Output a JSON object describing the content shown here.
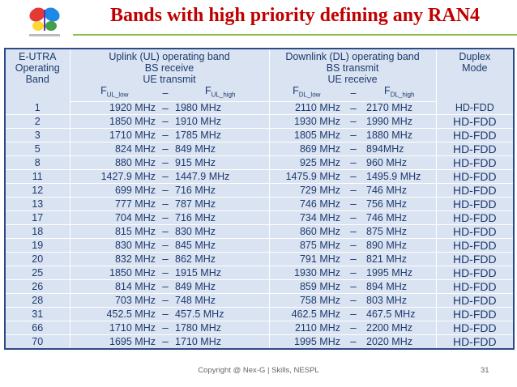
{
  "header": {
    "title": "Bands with high priority defining any RAN4"
  },
  "table": {
    "headers": [
      "E-UTRA Operating Band",
      "Uplink (UL) operating band BS receive UE transmit",
      "Downlink (DL) operating band BS transmit UE receive",
      "Duplex Mode"
    ],
    "header_lines": [
      [
        "E-UTRA",
        "Operating",
        "Band"
      ],
      [
        "Uplink (UL) operating band",
        "BS receive",
        "UE transmit"
      ],
      [
        "Downlink (DL) operating band",
        "BS transmit",
        "UE receive"
      ],
      [
        "Duplex",
        "Mode"
      ]
    ],
    "subheaders": [
      {
        "main": "F",
        "sub": "UL_low"
      },
      "–",
      {
        "main": "F",
        "sub": "UL_high"
      },
      {
        "main": "F",
        "sub": "DL_low"
      },
      "–",
      {
        "main": "F",
        "sub": "DL_high"
      }
    ],
    "rows": [
      [
        "1",
        "1920 MHz",
        "–",
        "1980 MHz",
        "2110 MHz",
        "–",
        "2170 MHz",
        "HD-FDD"
      ],
      [
        "2",
        "1850 MHz",
        "–",
        "1910 MHz",
        "1930 MHz",
        "–",
        "1990 MHz",
        "HD-FDD"
      ],
      [
        "3",
        "1710 MHz",
        "–",
        "1785 MHz",
        "1805 MHz",
        "–",
        "1880 MHz",
        "HD-FDD"
      ],
      [
        "5",
        "824 MHz",
        "–",
        "849 MHz",
        "869 MHz",
        "–",
        "894MHz",
        "HD-FDD"
      ],
      [
        "8",
        "880 MHz",
        "–",
        "915 MHz",
        "925 MHz",
        "–",
        "960 MHz",
        "HD-FDD"
      ],
      [
        "11",
        "1427.9 MHz",
        "–",
        "1447.9 MHz",
        "1475.9 MHz",
        "–",
        "1495.9 MHz",
        "HD-FDD"
      ],
      [
        "12",
        "699 MHz",
        "–",
        "716 MHz",
        "729 MHz",
        "–",
        "746 MHz",
        "HD-FDD"
      ],
      [
        "13",
        "777 MHz",
        "–",
        "787 MHz",
        "746 MHz",
        "–",
        "756 MHz",
        "HD-FDD"
      ],
      [
        "17",
        "704 MHz",
        "–",
        "716 MHz",
        "734 MHz",
        "–",
        "746 MHz",
        "HD-FDD"
      ],
      [
        "18",
        "815 MHz",
        "–",
        "830 MHz",
        "860 MHz",
        "–",
        "875 MHz",
        "HD-FDD"
      ],
      [
        "19",
        "830 MHz",
        "–",
        "845 MHz",
        "875 MHz",
        "–",
        "890 MHz",
        "HD-FDD"
      ],
      [
        "20",
        "832 MHz",
        "–",
        "862 MHz",
        "791 MHz",
        "–",
        "821 MHz",
        "HD-FDD"
      ],
      [
        "25",
        "1850 MHz",
        "–",
        "1915 MHz",
        "1930 MHz",
        "–",
        "1995 MHz",
        "HD-FDD"
      ],
      [
        "26",
        "814 MHz",
        "–",
        "849 MHz",
        "859 MHz",
        "–",
        "894 MHz",
        "HD-FDD"
      ],
      [
        "28",
        "703 MHz",
        "–",
        "748 MHz",
        "758 MHz",
        "–",
        "803 MHz",
        "HD-FDD"
      ],
      [
        "31",
        "452.5 MHz",
        "–",
        "457.5 MHz",
        "462.5 MHz",
        "–",
        "467.5 MHz",
        "HD-FDD"
      ],
      [
        "66",
        "1710 MHz",
        "–",
        "1780 MHz",
        "2110 MHz",
        "–",
        "2200 MHz",
        "HD-FDD"
      ],
      [
        "70",
        "1695 MHz",
        "–",
        "1710 MHz",
        "1995 MHz",
        "–",
        "2020 MHz",
        "HD-FDD"
      ]
    ]
  },
  "footer": {
    "copyright": "Copyright @ Nex-G | Skills, NESPL",
    "page": "31"
  }
}
